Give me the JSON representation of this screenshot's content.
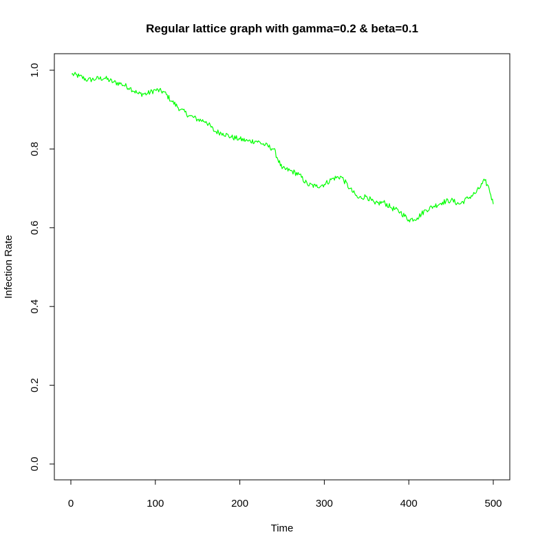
{
  "chart_data": {
    "type": "line",
    "title": "Regular lattice graph with gamma=0.2 & beta=0.1",
    "xlabel": "Time",
    "ylabel": "Infection Rate",
    "xlim": [
      0,
      500
    ],
    "ylim": [
      0.0,
      1.0
    ],
    "xticks": [
      0,
      100,
      200,
      300,
      400,
      500
    ],
    "xtick_labels": [
      "0",
      "100",
      "200",
      "300",
      "400",
      "500"
    ],
    "yticks": [
      0.0,
      0.2,
      0.4,
      0.6,
      0.8,
      1.0
    ],
    "ytick_labels": [
      "0.0",
      "0.2",
      "0.4",
      "0.6",
      "0.8",
      "1.0"
    ],
    "grid": false,
    "legend": "none",
    "series": [
      {
        "color": "#00ff00",
        "x": [
          1,
          10,
          20,
          30,
          40,
          50,
          60,
          70,
          80,
          90,
          100,
          110,
          120,
          130,
          140,
          150,
          160,
          170,
          180,
          190,
          200,
          210,
          220,
          230,
          240,
          250,
          260,
          270,
          280,
          290,
          300,
          310,
          320,
          330,
          340,
          350,
          360,
          370,
          380,
          390,
          400,
          410,
          420,
          430,
          440,
          450,
          460,
          470,
          480,
          490,
          495,
          500
        ],
        "y": [
          0.99,
          0.985,
          0.975,
          0.978,
          0.98,
          0.97,
          0.965,
          0.955,
          0.94,
          0.94,
          0.95,
          0.945,
          0.92,
          0.9,
          0.885,
          0.875,
          0.87,
          0.845,
          0.84,
          0.83,
          0.825,
          0.82,
          0.82,
          0.81,
          0.8,
          0.75,
          0.745,
          0.735,
          0.71,
          0.705,
          0.71,
          0.725,
          0.73,
          0.7,
          0.675,
          0.68,
          0.66,
          0.665,
          0.65,
          0.64,
          0.62,
          0.625,
          0.645,
          0.655,
          0.665,
          0.67,
          0.66,
          0.675,
          0.69,
          0.72,
          0.7,
          0.66
        ]
      }
    ]
  }
}
